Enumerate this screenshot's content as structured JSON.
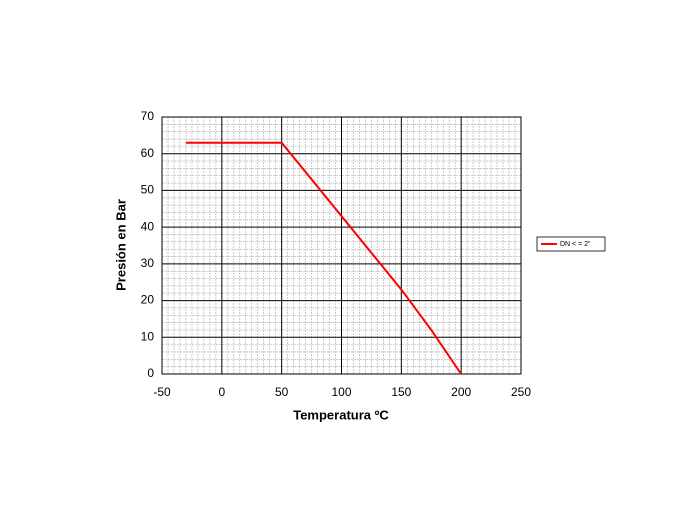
{
  "chart_data": {
    "type": "line",
    "x_label": "Temperatura ºC",
    "y_label": "Presión en Bar",
    "x": [
      -30,
      50,
      75,
      100,
      125,
      150,
      175,
      200
    ],
    "series": [
      {
        "name": "DN < = 2\"",
        "color": "#ff0000",
        "values": [
          63,
          63,
          53,
          43,
          33,
          23,
          12,
          0
        ]
      }
    ],
    "xlim": [
      -50,
      250
    ],
    "xticks": [
      -50,
      0,
      50,
      100,
      150,
      200,
      250
    ],
    "ylim": [
      0,
      70
    ],
    "yticks": [
      0,
      10,
      20,
      30,
      40,
      50,
      60,
      70
    ],
    "grid": true,
    "legend": "right"
  }
}
